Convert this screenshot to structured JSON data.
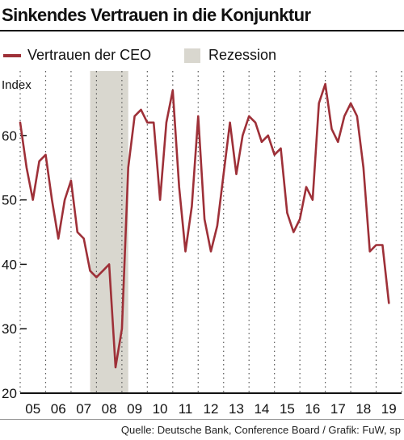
{
  "colors": {
    "line": "#9e3038",
    "recession": "#d9d7cf",
    "grid": "#555555",
    "axis": "#111111"
  },
  "title": "Sinkendes Vertrauen in die Konjunktur",
  "source": "Quelle: Deutsche Bank, Conference Board / Grafik: FuW, sp",
  "legend": [
    {
      "label": "Vertrauen der CEO",
      "kind": "line"
    },
    {
      "label": "Rezession",
      "kind": "box"
    }
  ],
  "chart_data": {
    "type": "line",
    "title": "Sinkendes Vertrauen in die Konjunktur",
    "ylabel": "Index",
    "xlabel": "",
    "ylim": [
      20,
      70
    ],
    "xlim": [
      2005,
      2020
    ],
    "y_ticks": [
      20,
      30,
      40,
      50,
      60
    ],
    "x_ticks": [
      "05",
      "06",
      "07",
      "08",
      "09",
      "10",
      "11",
      "12",
      "13",
      "14",
      "15",
      "16",
      "17",
      "18",
      "19"
    ],
    "grid": "vertical dotted",
    "legend_position": "top",
    "recession": {
      "label": "Rezession",
      "start": 2007.75,
      "end": 2009.25
    },
    "series": [
      {
        "name": "Vertrauen der CEO",
        "points": [
          [
            2005.0,
            62
          ],
          [
            2005.25,
            55
          ],
          [
            2005.5,
            50
          ],
          [
            2005.75,
            56
          ],
          [
            2006.0,
            57
          ],
          [
            2006.25,
            50
          ],
          [
            2006.5,
            44
          ],
          [
            2006.75,
            50
          ],
          [
            2007.0,
            53
          ],
          [
            2007.25,
            45
          ],
          [
            2007.5,
            44
          ],
          [
            2007.75,
            39
          ],
          [
            2008.0,
            38
          ],
          [
            2008.25,
            39
          ],
          [
            2008.5,
            40
          ],
          [
            2008.75,
            24
          ],
          [
            2009.0,
            30
          ],
          [
            2009.25,
            55
          ],
          [
            2009.5,
            63
          ],
          [
            2009.75,
            64
          ],
          [
            2010.0,
            62
          ],
          [
            2010.25,
            62
          ],
          [
            2010.5,
            50
          ],
          [
            2010.75,
            62
          ],
          [
            2011.0,
            67
          ],
          [
            2011.25,
            52
          ],
          [
            2011.5,
            42
          ],
          [
            2011.75,
            49
          ],
          [
            2012.0,
            63
          ],
          [
            2012.25,
            47
          ],
          [
            2012.5,
            42
          ],
          [
            2012.75,
            46
          ],
          [
            2013.0,
            54
          ],
          [
            2013.25,
            62
          ],
          [
            2013.5,
            54
          ],
          [
            2013.75,
            60
          ],
          [
            2014.0,
            63
          ],
          [
            2014.25,
            62
          ],
          [
            2014.5,
            59
          ],
          [
            2014.75,
            60
          ],
          [
            2015.0,
            57
          ],
          [
            2015.25,
            58
          ],
          [
            2015.5,
            48
          ],
          [
            2015.75,
            45
          ],
          [
            2016.0,
            47
          ],
          [
            2016.25,
            52
          ],
          [
            2016.5,
            50
          ],
          [
            2016.75,
            65
          ],
          [
            2017.0,
            68
          ],
          [
            2017.25,
            61
          ],
          [
            2017.5,
            59
          ],
          [
            2017.75,
            63
          ],
          [
            2018.0,
            65
          ],
          [
            2018.25,
            63
          ],
          [
            2018.5,
            55
          ],
          [
            2018.75,
            42
          ],
          [
            2019.0,
            43
          ],
          [
            2019.25,
            43
          ],
          [
            2019.5,
            34
          ]
        ]
      }
    ]
  }
}
